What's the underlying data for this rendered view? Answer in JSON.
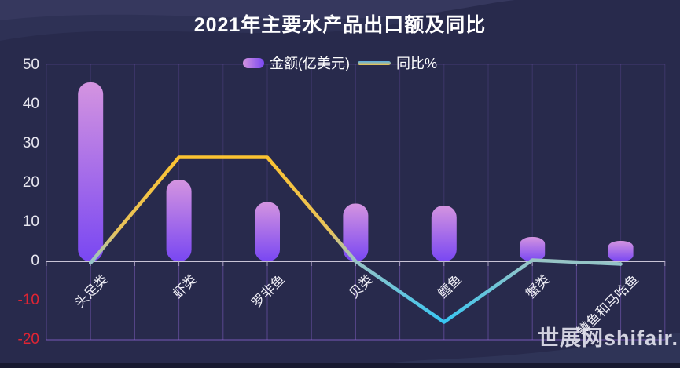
{
  "title": "2021年主要水产品出口额及同比",
  "legend": {
    "items": [
      {
        "label": "金额(亿美元)",
        "swatch": "bar"
      },
      {
        "label": "同比%",
        "swatch": "line"
      }
    ]
  },
  "watermark": {
    "text": "世展网shifair."
  },
  "chart_data": {
    "type": "bar",
    "subtype": "bar+line combo",
    "title": "2021年主要水产品出口额及同比",
    "categories": [
      "头足类",
      "虾类",
      "罗非鱼",
      "贝类",
      "鳕鱼",
      "蟹类",
      "鳟鱼和马哈鱼"
    ],
    "series": [
      {
        "name": "金额(亿美元)",
        "type": "bar",
        "values": [
          45.6,
          20.8,
          15.1,
          14.7,
          14.2,
          6.2,
          5.2
        ]
      },
      {
        "name": "同比%",
        "type": "line",
        "values": [
          -0.4,
          26.5,
          26.5,
          0,
          -15.5,
          0.3,
          -0.7
        ]
      }
    ],
    "y_ticks": [
      50,
      40,
      30,
      20,
      10,
      0,
      -10,
      -20
    ],
    "ylim": [
      -20,
      50
    ],
    "xlabel": "",
    "ylabel": "",
    "legend_position": "top-center",
    "grid": "vertical gridlines at half-category steps; horizontal lines only at top, zero and bottom"
  },
  "colors": {
    "background": "#282a4c",
    "title_color": "#ffffff",
    "bar_top": "#d494e0",
    "bar_bottom": "#7947f2",
    "line_high": "#fcc331",
    "line_warm": "#e8c35c",
    "line_teal": "#9ac4c4",
    "line_low": "#38c6f2",
    "axis_zero": "#c9c4d6",
    "axis_tick": "#b9b2cc",
    "grid": "#8a63d0",
    "tick_label": "#e8e7f0",
    "negative_label": "#e02433",
    "x_label": "#f0eff6",
    "legend_text": "#ffffff",
    "legend_line_top": "#55aee8",
    "legend_line_bottom": "#eec34e",
    "watermark_color": "rgba(225,225,236,0.92)",
    "wave1": "#36385e",
    "wave2": "#2e3155",
    "wave_bottom": "#2f3457",
    "bottom_strip": "#171930"
  }
}
